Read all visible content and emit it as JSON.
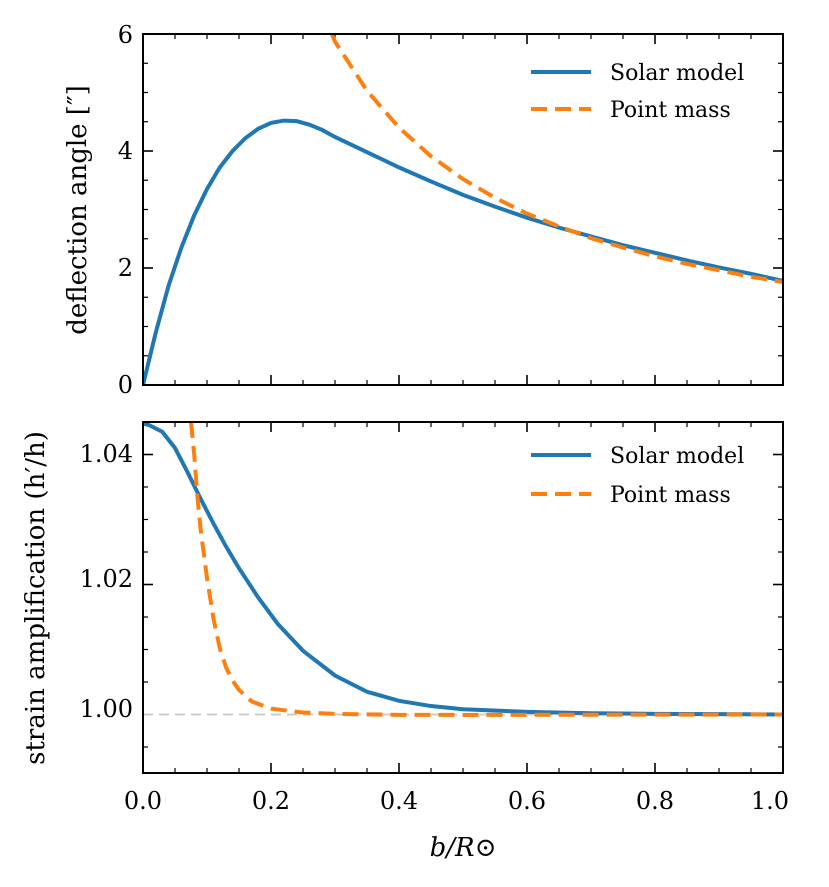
{
  "chart_data": [
    {
      "panel": "top",
      "type": "line",
      "title": "",
      "xlabel": "",
      "ylabel": "deflection angle [″]",
      "xlim": [
        0,
        1
      ],
      "ylim": [
        0,
        6
      ],
      "yticks": [
        0,
        2,
        4,
        6
      ],
      "ytick_labels": [
        "0",
        "2",
        "4",
        "6"
      ],
      "legend_position": "top-right",
      "series": [
        {
          "name": "Solar model",
          "color": "#1f77b4",
          "style": "solid",
          "x": [
            0.0,
            0.02,
            0.04,
            0.06,
            0.08,
            0.1,
            0.12,
            0.14,
            0.16,
            0.18,
            0.2,
            0.22,
            0.24,
            0.26,
            0.28,
            0.3,
            0.35,
            0.4,
            0.45,
            0.5,
            0.55,
            0.6,
            0.65,
            0.7,
            0.75,
            0.8,
            0.85,
            0.9,
            0.95,
            1.0
          ],
          "y": [
            0.0,
            0.9,
            1.7,
            2.35,
            2.9,
            3.35,
            3.72,
            4.0,
            4.22,
            4.38,
            4.48,
            4.52,
            4.51,
            4.45,
            4.36,
            4.24,
            3.98,
            3.72,
            3.48,
            3.25,
            3.05,
            2.86,
            2.69,
            2.54,
            2.39,
            2.26,
            2.13,
            2.01,
            1.9,
            1.78
          ]
        },
        {
          "name": "Point mass",
          "color": "#ff7f0e",
          "style": "dashed",
          "x": [
            0.295,
            0.3,
            0.35,
            0.4,
            0.45,
            0.5,
            0.55,
            0.6,
            0.65,
            0.7,
            0.75,
            0.8,
            0.85,
            0.9,
            0.95,
            1.0
          ],
          "y": [
            6.0,
            5.87,
            5.03,
            4.4,
            3.91,
            3.52,
            3.2,
            2.93,
            2.71,
            2.51,
            2.35,
            2.2,
            2.07,
            1.96,
            1.85,
            1.76
          ]
        }
      ]
    },
    {
      "panel": "bottom",
      "type": "line",
      "title": "",
      "xlabel": "b/R⊙",
      "ylabel": "strain amplification (h′/h)",
      "xlim": [
        0,
        1
      ],
      "ylim": [
        0.991,
        1.045
      ],
      "xticks": [
        0.0,
        0.2,
        0.4,
        0.6,
        0.8,
        1.0
      ],
      "xtick_labels": [
        "0.0",
        "0.2",
        "0.4",
        "0.6",
        "0.8",
        "1.0"
      ],
      "yticks": [
        1.0,
        1.02,
        1.04
      ],
      "ytick_labels": [
        "1.00",
        "1.02",
        "1.04"
      ],
      "reference_line": {
        "y": 1.0,
        "color": "#cccccc",
        "style": "dashed"
      },
      "legend_position": "top-right",
      "series": [
        {
          "name": "Solar model",
          "color": "#1f77b4",
          "style": "solid",
          "x": [
            0.0,
            0.01,
            0.03,
            0.05,
            0.07,
            0.09,
            0.11,
            0.13,
            0.15,
            0.18,
            0.21,
            0.25,
            0.3,
            0.35,
            0.4,
            0.45,
            0.5,
            0.6,
            0.7,
            0.8,
            0.9,
            1.0
          ],
          "y": [
            1.0448,
            1.0445,
            1.0435,
            1.041,
            1.0372,
            1.0332,
            1.0294,
            1.0258,
            1.0225,
            1.018,
            1.014,
            1.0098,
            1.006,
            1.0035,
            1.0021,
            1.0013,
            1.0008,
            1.0004,
            1.0002,
            1.0001,
            1.00005,
            1.0
          ]
        },
        {
          "name": "Point mass",
          "color": "#ff7f0e",
          "style": "dashed",
          "x": [
            0.075,
            0.08,
            0.085,
            0.09,
            0.1,
            0.11,
            0.12,
            0.13,
            0.14,
            0.15,
            0.17,
            0.2,
            0.25,
            0.3,
            0.4,
            0.5,
            0.6,
            0.8,
            1.0
          ],
          "y": [
            1.045,
            1.04,
            1.0335,
            1.0285,
            1.021,
            1.0148,
            1.0102,
            1.0072,
            1.0052,
            1.0038,
            1.002,
            1.0009,
            1.0003,
            1.0001,
            0.99995,
            0.99993,
            0.99995,
            0.99998,
            1.0
          ]
        }
      ]
    }
  ]
}
